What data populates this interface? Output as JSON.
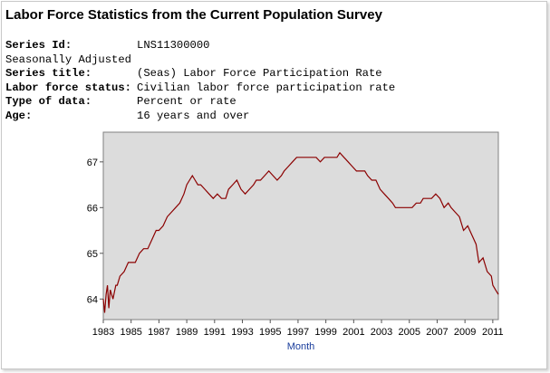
{
  "page": {
    "title": "Labor Force Statistics from the Current Population Survey"
  },
  "series_meta": {
    "series_id_label": "Series Id:",
    "series_id_value": "LNS11300000",
    "seasonal": "Seasonally Adjusted",
    "series_title_label": "Series title:",
    "series_title_value": "(Seas) Labor Force Participation Rate",
    "status_label": "Labor force status:",
    "status_value": "Civilian labor force participation rate",
    "type_label": "Type of data:",
    "type_value": "Percent or rate",
    "age_label": "Age:",
    "age_value": "16 years and over"
  },
  "chart_data": {
    "type": "line",
    "xlabel": "Month",
    "ylabel": "",
    "xlim": [
      1983.0,
      2011.4
    ],
    "ylim": [
      63.55,
      67.65
    ],
    "x_ticks": [
      "1983",
      "1985",
      "1987",
      "1989",
      "1991",
      "1993",
      "1995",
      "1997",
      "1999",
      "2001",
      "2003",
      "2005",
      "2007",
      "2009",
      "2011"
    ],
    "y_ticks": [
      "64",
      "65",
      "66",
      "67"
    ],
    "grid": false,
    "colors": {
      "plot_bg": "#dcdcdc",
      "line": "#8b0000",
      "axis_title": "#1a3d9c"
    },
    "series": [
      {
        "x": [
          1983.0,
          1983.1,
          1983.2,
          1983.3,
          1983.4,
          1983.5,
          1983.7,
          1983.9,
          1984.0,
          1984.2,
          1984.5,
          1984.8,
          1985.0,
          1985.3,
          1985.6,
          1985.9,
          1986.2,
          1986.5,
          1986.8,
          1987.0,
          1987.3,
          1987.6,
          1987.9,
          1988.2,
          1988.5,
          1988.8,
          1989.0,
          1989.2,
          1989.4,
          1989.6,
          1989.8,
          1990.0,
          1990.3,
          1990.6,
          1990.9,
          1991.2,
          1991.5,
          1991.8,
          1992.0,
          1992.3,
          1992.6,
          1992.9,
          1993.2,
          1993.5,
          1993.8,
          1994.0,
          1994.3,
          1994.6,
          1994.9,
          1995.2,
          1995.5,
          1995.8,
          1996.0,
          1996.3,
          1996.6,
          1996.9,
          1997.2,
          1997.5,
          1997.8,
          1998.0,
          1998.3,
          1998.6,
          1998.9,
          1999.2,
          1999.5,
          1999.8,
          2000.0,
          2000.3,
          2000.6,
          2000.9,
          2001.2,
          2001.5,
          2001.8,
          2002.0,
          2002.3,
          2002.6,
          2002.9,
          2003.2,
          2003.5,
          2003.8,
          2004.0,
          2004.3,
          2004.6,
          2004.9,
          2005.2,
          2005.5,
          2005.8,
          2006.0,
          2006.3,
          2006.6,
          2006.9,
          2007.2,
          2007.5,
          2007.8,
          2008.0,
          2008.3,
          2008.6,
          2008.9,
          2009.2,
          2009.5,
          2009.8,
          2010.0,
          2010.3,
          2010.6,
          2010.9,
          2011.0,
          2011.2,
          2011.4
        ],
        "values": [
          64.0,
          63.7,
          64.1,
          64.3,
          63.8,
          64.2,
          64.0,
          64.3,
          64.3,
          64.5,
          64.6,
          64.8,
          64.8,
          64.8,
          65.0,
          65.1,
          65.1,
          65.3,
          65.5,
          65.5,
          65.6,
          65.8,
          65.9,
          66.0,
          66.1,
          66.3,
          66.5,
          66.6,
          66.7,
          66.6,
          66.5,
          66.5,
          66.4,
          66.3,
          66.2,
          66.3,
          66.2,
          66.2,
          66.4,
          66.5,
          66.6,
          66.4,
          66.3,
          66.4,
          66.5,
          66.6,
          66.6,
          66.7,
          66.8,
          66.7,
          66.6,
          66.7,
          66.8,
          66.9,
          67.0,
          67.1,
          67.1,
          67.1,
          67.1,
          67.1,
          67.1,
          67.0,
          67.1,
          67.1,
          67.1,
          67.1,
          67.2,
          67.1,
          67.0,
          66.9,
          66.8,
          66.8,
          66.8,
          66.7,
          66.6,
          66.6,
          66.4,
          66.3,
          66.2,
          66.1,
          66.0,
          66.0,
          66.0,
          66.0,
          66.0,
          66.1,
          66.1,
          66.2,
          66.2,
          66.2,
          66.3,
          66.2,
          66.0,
          66.1,
          66.0,
          65.9,
          65.8,
          65.5,
          65.6,
          65.4,
          65.2,
          64.8,
          64.9,
          64.6,
          64.5,
          64.3,
          64.2,
          64.1
        ]
      }
    ]
  }
}
